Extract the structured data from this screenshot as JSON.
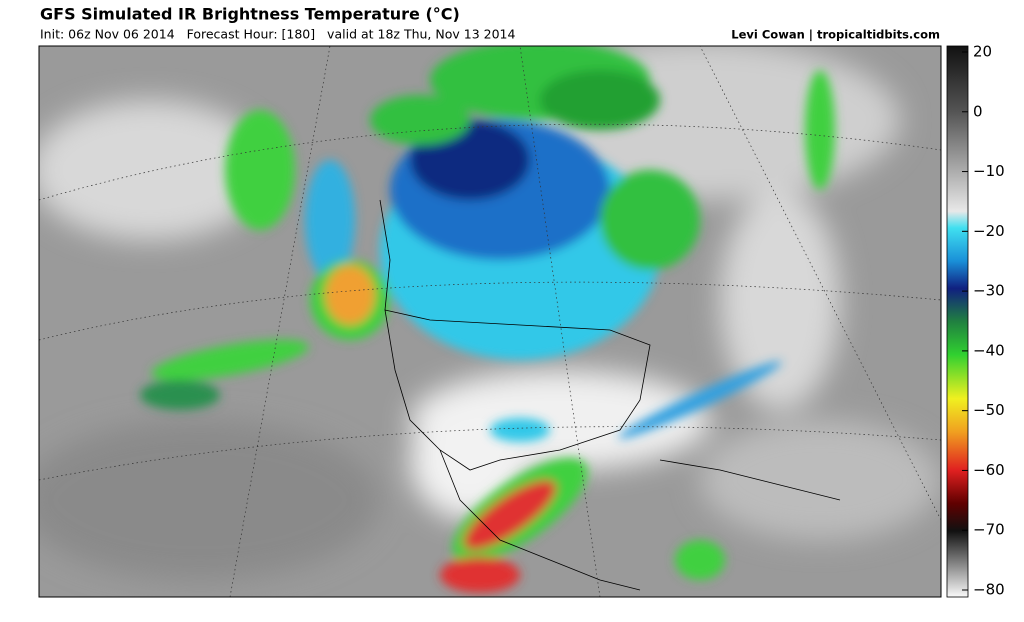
{
  "header": {
    "title": "GFS Simulated IR Brightness Temperature (°C)",
    "subtitle": "Init: 06z Nov 06 2014   Forecast Hour: [180]   valid at 18z Thu, Nov 13 2014",
    "credit": "Levi Cowan | tropicaltidbits.com"
  },
  "colorbar": {
    "ticks": [
      20,
      0,
      {
        "value": -10,
        "label": "−10"
      },
      {
        "value": -20,
        "label": "−20"
      },
      {
        "value": -30,
        "label": "−30"
      },
      {
        "value": -40,
        "label": "−40"
      },
      {
        "value": -50,
        "label": "−50"
      },
      {
        "value": -60,
        "label": "−60"
      },
      {
        "value": -70,
        "label": "−70"
      },
      {
        "value": -80,
        "label": "−80"
      }
    ]
  }
}
